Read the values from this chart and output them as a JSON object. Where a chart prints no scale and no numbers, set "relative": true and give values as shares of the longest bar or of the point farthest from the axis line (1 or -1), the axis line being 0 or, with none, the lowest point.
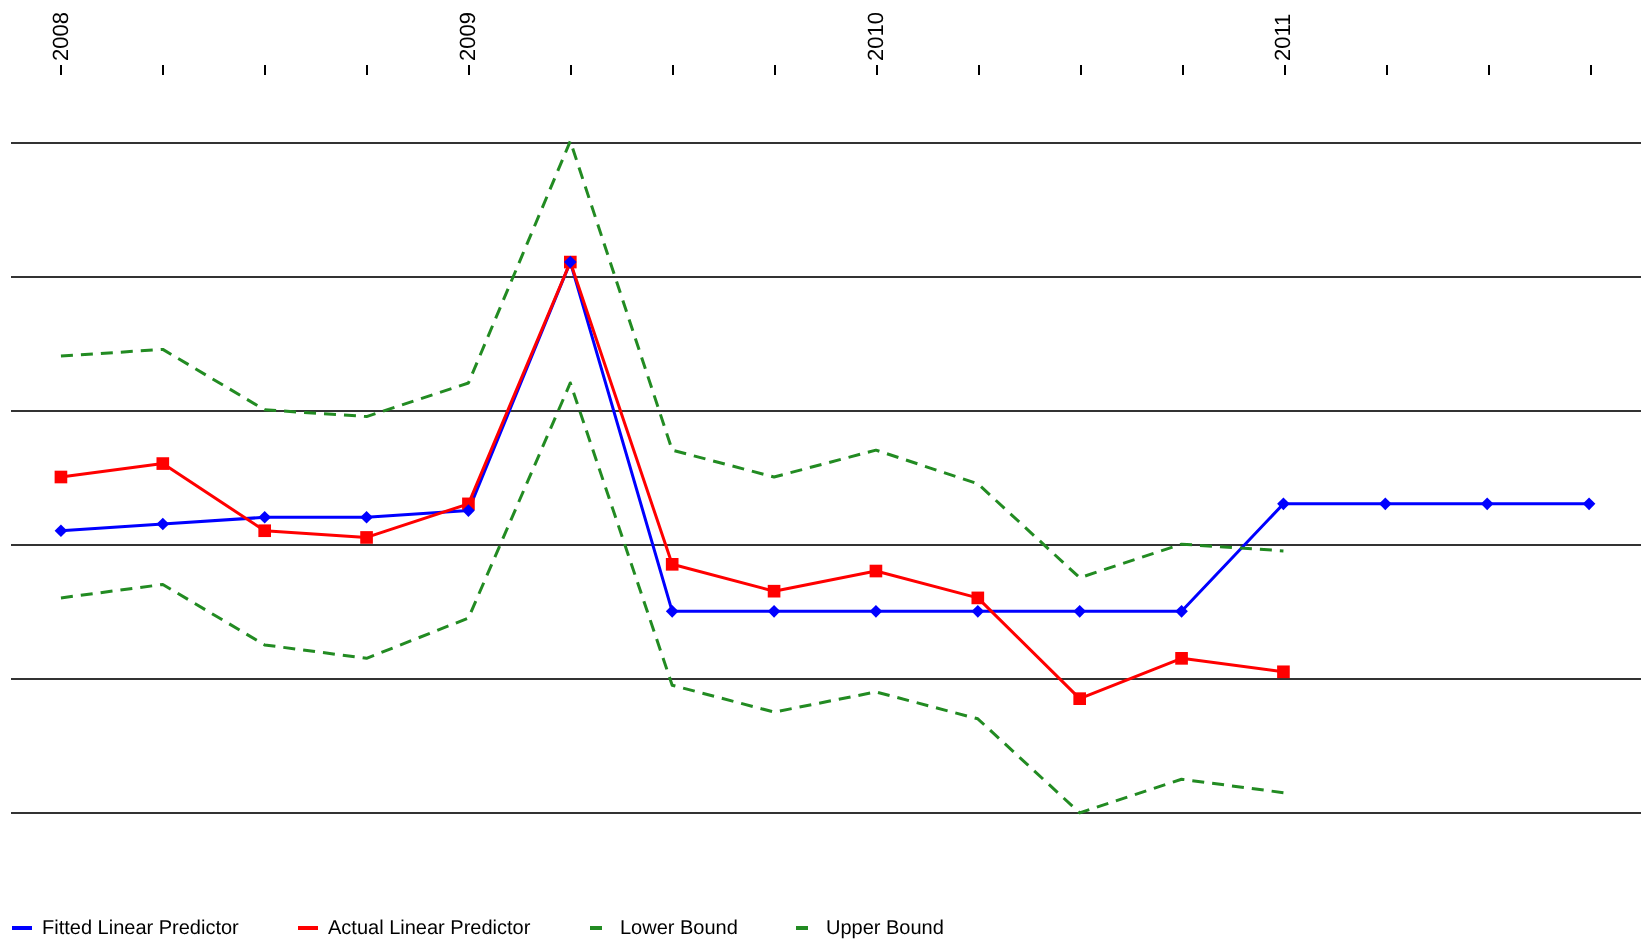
{
  "chart_data": {
    "type": "line",
    "relative": true,
    "grid": "y",
    "legend": "bottom",
    "categories": [
      "2008",
      null,
      null,
      null,
      "2009",
      null,
      null,
      null,
      "2010",
      null,
      null,
      null,
      "2011",
      null,
      null,
      null
    ],
    "series": [
      {
        "name": "Fitted Linear Predictor",
        "color": "#0000ff",
        "marker": "diamond",
        "line_style": "solid",
        "values": [
          0.42,
          0.43,
          0.44,
          0.44,
          0.45,
          0.82,
          0.3,
          0.3,
          0.3,
          0.3,
          0.3,
          0.3,
          0.46,
          0.46,
          0.46,
          0.46
        ]
      },
      {
        "name": "Actual Linear Predictor",
        "color": "#ff0000",
        "marker": "square",
        "line_style": "solid",
        "values": [
          0.5,
          0.52,
          0.42,
          0.41,
          0.46,
          0.82,
          0.37,
          0.33,
          0.36,
          0.32,
          0.17,
          0.23,
          0.21,
          null,
          null,
          null
        ]
      },
      {
        "name": "Lower Bound",
        "color": "#228b22",
        "marker": "none",
        "line_style": "dashed",
        "values": [
          0.32,
          0.34,
          0.25,
          0.23,
          0.29,
          0.64,
          0.19,
          0.15,
          0.18,
          0.14,
          0.0,
          0.05,
          0.03,
          null,
          null,
          null
        ]
      },
      {
        "name": "Upper Bound",
        "color": "#228b22",
        "marker": "none",
        "line_style": "dashed",
        "values": [
          0.68,
          0.69,
          0.6,
          0.59,
          0.64,
          1.0,
          0.54,
          0.5,
          0.54,
          0.49,
          0.35,
          0.4,
          0.39,
          null,
          null,
          null
        ]
      }
    ]
  }
}
